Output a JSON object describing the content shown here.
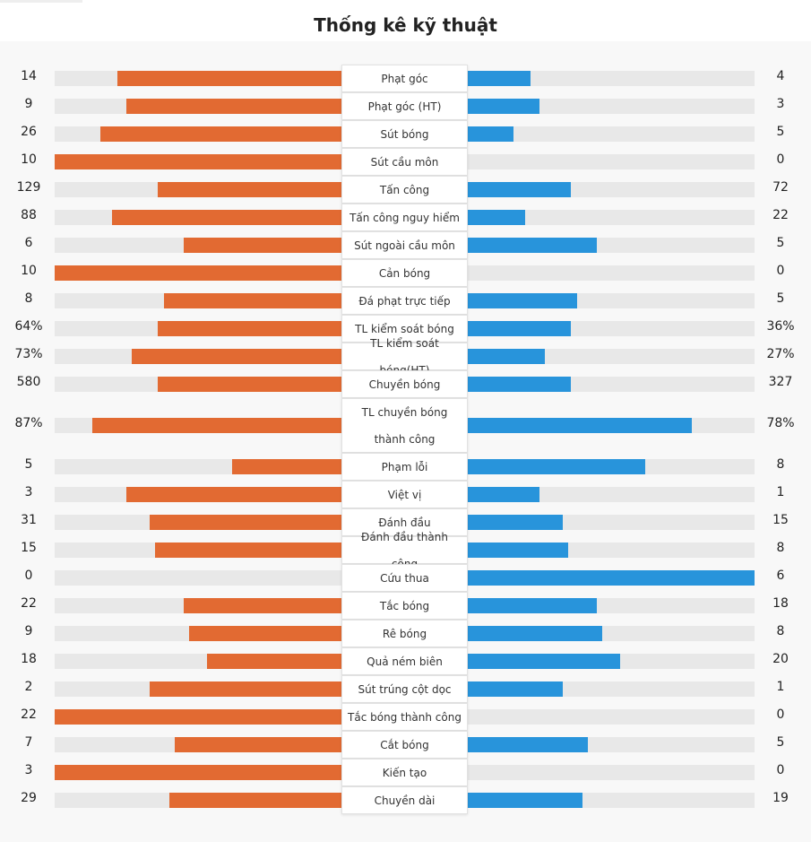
{
  "header": {
    "title": "Thống kê kỹ thuật"
  },
  "colors": {
    "home": "#e26a32",
    "away": "#2894db",
    "track": "#e8e8e8"
  },
  "stats": [
    {
      "label": "Phạt góc",
      "home": "14",
      "away": "4",
      "home_share": 0.78,
      "away_share": 0.22
    },
    {
      "label": "Phạt góc (HT)",
      "home": "9",
      "away": "3",
      "home_share": 0.75,
      "away_share": 0.25
    },
    {
      "label": "Sút bóng",
      "home": "26",
      "away": "5",
      "home_share": 0.84,
      "away_share": 0.16
    },
    {
      "label": "Sút cầu môn",
      "home": "10",
      "away": "0",
      "home_share": 1.0,
      "away_share": 0.0
    },
    {
      "label": "Tấn công",
      "home": "129",
      "away": "72",
      "home_share": 0.64,
      "away_share": 0.36
    },
    {
      "label": "Tấn công nguy hiểm",
      "home": "88",
      "away": "22",
      "home_share": 0.8,
      "away_share": 0.2
    },
    {
      "label": "Sút ngoài cầu môn",
      "home": "6",
      "away": "5",
      "home_share": 0.55,
      "away_share": 0.45
    },
    {
      "label": "Cản bóng",
      "home": "10",
      "away": "0",
      "home_share": 1.0,
      "away_share": 0.0
    },
    {
      "label": "Đá phạt trực tiếp",
      "home": "8",
      "away": "5",
      "home_share": 0.62,
      "away_share": 0.38
    },
    {
      "label": "TL kiểm soát bóng",
      "home": "64%",
      "away": "36%",
      "home_share": 0.64,
      "away_share": 0.36
    },
    {
      "label": "TL kiểm soát bóng(HT)",
      "home": "73%",
      "away": "27%",
      "home_share": 0.73,
      "away_share": 0.27
    },
    {
      "label": "Chuyền bóng",
      "home": "580",
      "away": "327",
      "home_share": 0.64,
      "away_share": 0.36
    },
    {
      "label": "TL chuyền bóng thành công",
      "home": "87%",
      "away": "78%",
      "home_share": 0.87,
      "away_share": 0.78,
      "tall": true
    },
    {
      "label": "Phạm lỗi",
      "home": "5",
      "away": "8",
      "home_share": 0.38,
      "away_share": 0.62
    },
    {
      "label": "Việt vị",
      "home": "3",
      "away": "1",
      "home_share": 0.75,
      "away_share": 0.25
    },
    {
      "label": "Đánh đầu",
      "home": "31",
      "away": "15",
      "home_share": 0.67,
      "away_share": 0.33
    },
    {
      "label": "Đánh đầu thành công",
      "home": "15",
      "away": "8",
      "home_share": 0.65,
      "away_share": 0.35
    },
    {
      "label": "Cứu thua",
      "home": "0",
      "away": "6",
      "home_share": 0.0,
      "away_share": 1.0
    },
    {
      "label": "Tắc bóng",
      "home": "22",
      "away": "18",
      "home_share": 0.55,
      "away_share": 0.45
    },
    {
      "label": "Rê bóng",
      "home": "9",
      "away": "8",
      "home_share": 0.53,
      "away_share": 0.47
    },
    {
      "label": "Quả ném biên",
      "home": "18",
      "away": "20",
      "home_share": 0.47,
      "away_share": 0.53
    },
    {
      "label": "Sút trúng cột dọc",
      "home": "2",
      "away": "1",
      "home_share": 0.67,
      "away_share": 0.33
    },
    {
      "label": "Tắc bóng thành công",
      "home": "22",
      "away": "0",
      "home_share": 1.0,
      "away_share": 0.0
    },
    {
      "label": "Cắt bóng",
      "home": "7",
      "away": "5",
      "home_share": 0.58,
      "away_share": 0.42
    },
    {
      "label": "Kiến tạo",
      "home": "3",
      "away": "0",
      "home_share": 1.0,
      "away_share": 0.0
    },
    {
      "label": "Chuyền dài",
      "home": "29",
      "away": "19",
      "home_share": 0.6,
      "away_share": 0.4
    }
  ]
}
